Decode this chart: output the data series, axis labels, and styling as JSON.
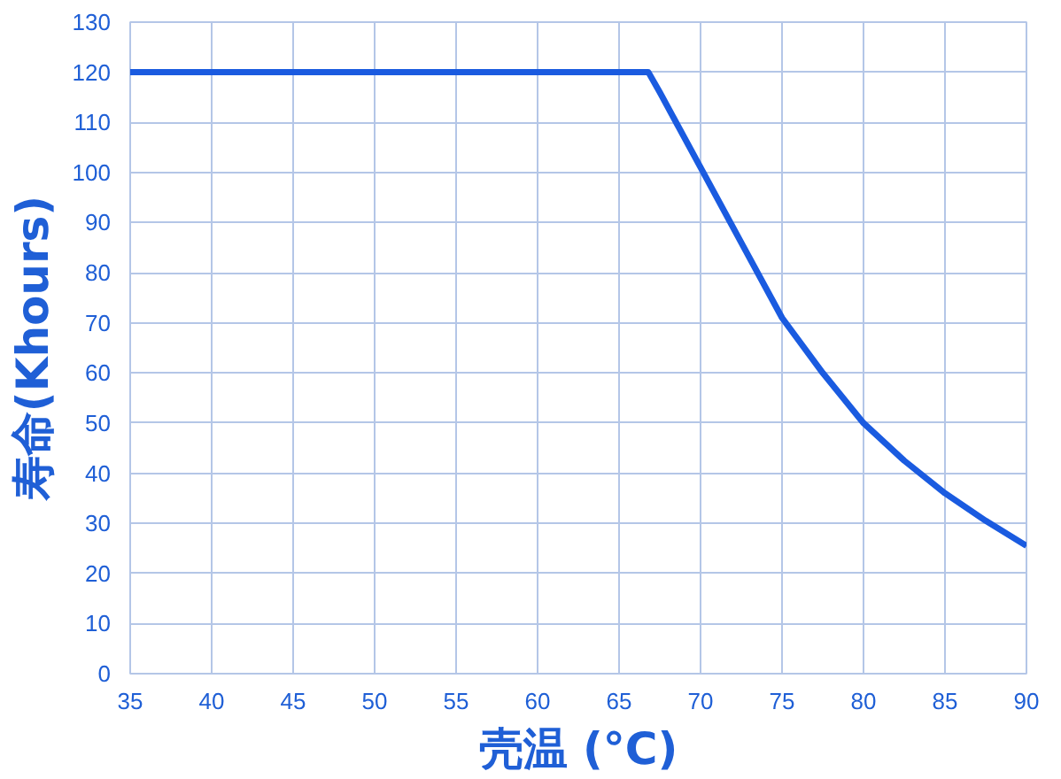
{
  "chart_data": {
    "type": "line",
    "xlabel": "壳温 (°C)",
    "ylabel": "寿命(Khours)",
    "x": [
      35,
      66.8,
      67.5,
      70,
      72.5,
      75,
      77.5,
      80,
      82.5,
      85,
      87.5,
      90
    ],
    "series": [
      {
        "color": "#1a5be0",
        "values": [
          120,
          120,
          116,
          101,
          86,
          71,
          60,
          50,
          42.5,
          36,
          30.5,
          25.5
        ]
      }
    ],
    "xlim": [
      35,
      90
    ],
    "xticks": [
      35,
      40,
      45,
      50,
      55,
      60,
      65,
      70,
      75,
      80,
      85,
      90
    ],
    "ylim": [
      0,
      130
    ],
    "yticks": [
      0,
      10,
      20,
      30,
      40,
      50,
      60,
      70,
      80,
      90,
      100,
      110,
      120,
      130
    ],
    "grid": true,
    "marker": "none",
    "line_style": "solid"
  }
}
